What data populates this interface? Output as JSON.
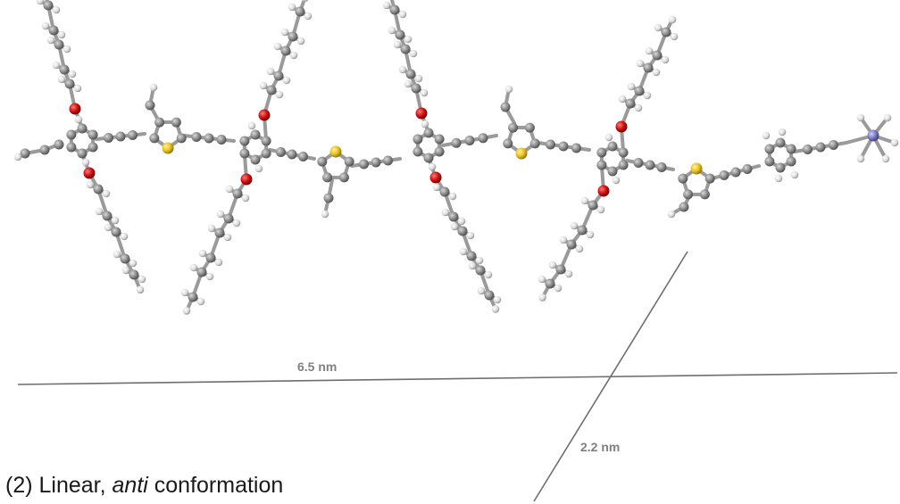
{
  "figure": {
    "length_label": "6.5 nm",
    "width_label": "2.2 nm",
    "caption": {
      "prefix": "(2) Linear, ",
      "italic": "anti",
      "suffix": " conformation"
    }
  },
  "atom_colors": {
    "carbon": "#8c8c8c",
    "hydrogen": "#e6e6e6",
    "oxygen": "#cc1010",
    "sulfur": "#e8c020",
    "nitrogen": "#7878c0",
    "dimension_line": "#6e6e6e"
  }
}
